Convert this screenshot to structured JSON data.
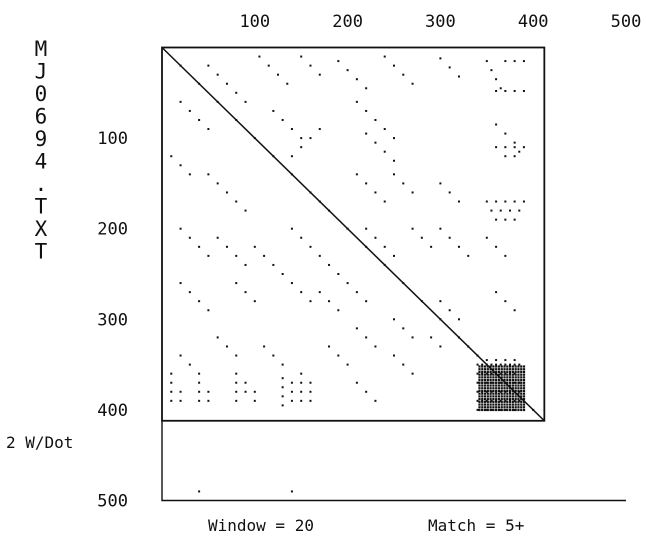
{
  "chart_data": {
    "type": "scatter",
    "title": "",
    "ylabel": "MJ0694.TXT",
    "xlabel": "",
    "xlim": [
      0,
      500
    ],
    "ylim": [
      0,
      500
    ],
    "y_inverted": true,
    "x_ticks": [
      "100",
      "200",
      "300",
      "400",
      "500"
    ],
    "y_ticks": [
      "100",
      "200",
      "300",
      "400",
      "500"
    ],
    "sequence_length": 412,
    "scale_note": "2 W/Dot",
    "window_label": "Window = 20",
    "match_label": "Match =  5+",
    "window": 20,
    "match_min": 5,
    "grid": false,
    "main_diagonal": [
      [
        0,
        0
      ],
      [
        412,
        412
      ]
    ],
    "series": [
      {
        "values": [
          [
            20,
            20
          ],
          [
            40,
            40
          ],
          [
            60,
            60
          ],
          [
            80,
            80
          ],
          [
            100,
            100
          ],
          [
            120,
            120
          ],
          [
            140,
            140
          ],
          [
            160,
            160
          ],
          [
            170,
            170
          ],
          [
            180,
            180
          ],
          [
            200,
            200
          ],
          [
            220,
            220
          ],
          [
            240,
            240
          ],
          [
            260,
            260
          ],
          [
            280,
            280
          ],
          [
            300,
            300
          ],
          [
            320,
            320
          ],
          [
            330,
            330
          ],
          [
            340,
            340
          ],
          [
            360,
            360
          ],
          [
            380,
            380
          ],
          [
            400,
            400
          ],
          [
            50,
            20
          ],
          [
            60,
            30
          ],
          [
            70,
            40
          ],
          [
            80,
            50
          ],
          [
            90,
            60
          ],
          [
            105,
            10
          ],
          [
            115,
            20
          ],
          [
            125,
            30
          ],
          [
            135,
            40
          ],
          [
            150,
            10
          ],
          [
            160,
            20
          ],
          [
            170,
            30
          ],
          [
            190,
            15
          ],
          [
            200,
            25
          ],
          [
            210,
            35
          ],
          [
            220,
            45
          ],
          [
            240,
            10
          ],
          [
            250,
            20
          ],
          [
            260,
            30
          ],
          [
            270,
            40
          ],
          [
            300,
            12
          ],
          [
            310,
            22
          ],
          [
            320,
            32
          ],
          [
            350,
            15
          ],
          [
            355,
            25
          ],
          [
            360,
            35
          ],
          [
            365,
            45
          ],
          [
            370,
            15
          ],
          [
            380,
            15
          ],
          [
            390,
            15
          ],
          [
            360,
            48
          ],
          [
            370,
            48
          ],
          [
            380,
            48
          ],
          [
            390,
            48
          ],
          [
            120,
            70
          ],
          [
            130,
            80
          ],
          [
            140,
            90
          ],
          [
            150,
            100
          ],
          [
            140,
            120
          ],
          [
            150,
            110
          ],
          [
            160,
            100
          ],
          [
            170,
            90
          ],
          [
            210,
            60
          ],
          [
            220,
            70
          ],
          [
            230,
            80
          ],
          [
            240,
            90
          ],
          [
            250,
            100
          ],
          [
            220,
            95
          ],
          [
            230,
            105
          ],
          [
            240,
            115
          ],
          [
            250,
            125
          ],
          [
            360,
            85
          ],
          [
            370,
            95
          ],
          [
            380,
            105
          ],
          [
            385,
            115
          ],
          [
            360,
            110
          ],
          [
            370,
            110
          ],
          [
            380,
            110
          ],
          [
            390,
            110
          ],
          [
            370,
            120
          ],
          [
            380,
            120
          ],
          [
            20,
            60
          ],
          [
            30,
            70
          ],
          [
            40,
            80
          ],
          [
            50,
            90
          ],
          [
            10,
            120
          ],
          [
            20,
            130
          ],
          [
            30,
            140
          ],
          [
            50,
            140
          ],
          [
            60,
            150
          ],
          [
            70,
            160
          ],
          [
            80,
            170
          ],
          [
            90,
            180
          ],
          [
            210,
            140
          ],
          [
            220,
            150
          ],
          [
            230,
            160
          ],
          [
            240,
            170
          ],
          [
            250,
            140
          ],
          [
            260,
            150
          ],
          [
            270,
            160
          ],
          [
            300,
            150
          ],
          [
            310,
            160
          ],
          [
            320,
            170
          ],
          [
            350,
            170
          ],
          [
            360,
            170
          ],
          [
            370,
            170
          ],
          [
            380,
            170
          ],
          [
            390,
            170
          ],
          [
            355,
            180
          ],
          [
            365,
            180
          ],
          [
            375,
            180
          ],
          [
            385,
            180
          ],
          [
            360,
            190
          ],
          [
            370,
            190
          ],
          [
            380,
            190
          ],
          [
            20,
            200
          ],
          [
            30,
            210
          ],
          [
            40,
            220
          ],
          [
            50,
            230
          ],
          [
            60,
            210
          ],
          [
            70,
            220
          ],
          [
            80,
            230
          ],
          [
            90,
            240
          ],
          [
            100,
            220
          ],
          [
            110,
            230
          ],
          [
            120,
            240
          ],
          [
            140,
            200
          ],
          [
            150,
            210
          ],
          [
            160,
            220
          ],
          [
            170,
            230
          ],
          [
            180,
            240
          ],
          [
            190,
            250
          ],
          [
            220,
            200
          ],
          [
            230,
            210
          ],
          [
            240,
            220
          ],
          [
            250,
            230
          ],
          [
            270,
            200
          ],
          [
            280,
            210
          ],
          [
            290,
            220
          ],
          [
            300,
            200
          ],
          [
            310,
            210
          ],
          [
            320,
            220
          ],
          [
            330,
            230
          ],
          [
            350,
            210
          ],
          [
            360,
            220
          ],
          [
            370,
            230
          ],
          [
            20,
            260
          ],
          [
            30,
            270
          ],
          [
            40,
            280
          ],
          [
            50,
            290
          ],
          [
            80,
            260
          ],
          [
            90,
            270
          ],
          [
            100,
            280
          ],
          [
            130,
            250
          ],
          [
            140,
            260
          ],
          [
            150,
            270
          ],
          [
            160,
            280
          ],
          [
            170,
            270
          ],
          [
            180,
            280
          ],
          [
            190,
            290
          ],
          [
            200,
            260
          ],
          [
            210,
            270
          ],
          [
            220,
            280
          ],
          [
            250,
            300
          ],
          [
            260,
            310
          ],
          [
            270,
            320
          ],
          [
            300,
            280
          ],
          [
            310,
            290
          ],
          [
            320,
            300
          ],
          [
            360,
            270
          ],
          [
            370,
            280
          ],
          [
            380,
            290
          ],
          [
            20,
            340
          ],
          [
            30,
            350
          ],
          [
            40,
            360
          ],
          [
            60,
            320
          ],
          [
            70,
            330
          ],
          [
            80,
            340
          ],
          [
            110,
            330
          ],
          [
            120,
            340
          ],
          [
            130,
            350
          ],
          [
            180,
            330
          ],
          [
            190,
            340
          ],
          [
            200,
            350
          ],
          [
            210,
            310
          ],
          [
            220,
            320
          ],
          [
            230,
            330
          ],
          [
            250,
            340
          ],
          [
            260,
            350
          ],
          [
            270,
            360
          ],
          [
            290,
            320
          ],
          [
            300,
            330
          ],
          [
            10,
            360
          ],
          [
            10,
            370
          ],
          [
            10,
            380
          ],
          [
            10,
            390
          ],
          [
            20,
            380
          ],
          [
            20,
            390
          ],
          [
            40,
            370
          ],
          [
            40,
            380
          ],
          [
            40,
            390
          ],
          [
            50,
            380
          ],
          [
            50,
            390
          ],
          [
            80,
            360
          ],
          [
            80,
            370
          ],
          [
            80,
            380
          ],
          [
            80,
            390
          ],
          [
            90,
            370
          ],
          [
            90,
            380
          ],
          [
            100,
            380
          ],
          [
            100,
            390
          ],
          [
            130,
            365
          ],
          [
            130,
            375
          ],
          [
            130,
            385
          ],
          [
            130,
            395
          ],
          [
            140,
            370
          ],
          [
            140,
            380
          ],
          [
            140,
            390
          ],
          [
            150,
            360
          ],
          [
            150,
            370
          ],
          [
            150,
            380
          ],
          [
            150,
            390
          ],
          [
            160,
            370
          ],
          [
            160,
            380
          ],
          [
            160,
            390
          ],
          [
            210,
            370
          ],
          [
            220,
            380
          ],
          [
            230,
            390
          ],
          [
            340,
            350
          ],
          [
            345,
            350
          ],
          [
            350,
            350
          ],
          [
            355,
            350
          ],
          [
            360,
            350
          ],
          [
            365,
            350
          ],
          [
            370,
            350
          ],
          [
            375,
            350
          ],
          [
            380,
            350
          ],
          [
            385,
            350
          ],
          [
            340,
            360
          ],
          [
            345,
            360
          ],
          [
            350,
            360
          ],
          [
            355,
            360
          ],
          [
            360,
            360
          ],
          [
            365,
            360
          ],
          [
            370,
            360
          ],
          [
            375,
            360
          ],
          [
            380,
            360
          ],
          [
            340,
            370
          ],
          [
            345,
            370
          ],
          [
            350,
            370
          ],
          [
            355,
            370
          ],
          [
            360,
            370
          ],
          [
            365,
            370
          ],
          [
            370,
            370
          ],
          [
            375,
            370
          ],
          [
            380,
            370
          ],
          [
            385,
            370
          ],
          [
            340,
            380
          ],
          [
            345,
            380
          ],
          [
            350,
            380
          ],
          [
            355,
            380
          ],
          [
            360,
            380
          ],
          [
            365,
            380
          ],
          [
            370,
            380
          ],
          [
            375,
            380
          ],
          [
            380,
            380
          ],
          [
            385,
            380
          ],
          [
            340,
            390
          ],
          [
            345,
            390
          ],
          [
            350,
            390
          ],
          [
            355,
            390
          ],
          [
            360,
            390
          ],
          [
            365,
            390
          ],
          [
            370,
            390
          ],
          [
            375,
            390
          ],
          [
            380,
            390
          ],
          [
            385,
            390
          ],
          [
            340,
            400
          ],
          [
            345,
            400
          ],
          [
            350,
            400
          ],
          [
            355,
            400
          ],
          [
            360,
            400
          ],
          [
            365,
            400
          ],
          [
            370,
            400
          ],
          [
            375,
            400
          ],
          [
            380,
            400
          ],
          [
            350,
            345
          ],
          [
            360,
            345
          ],
          [
            370,
            345
          ],
          [
            380,
            345
          ],
          [
            40,
            490
          ],
          [
            140,
            490
          ]
        ]
      }
    ]
  }
}
